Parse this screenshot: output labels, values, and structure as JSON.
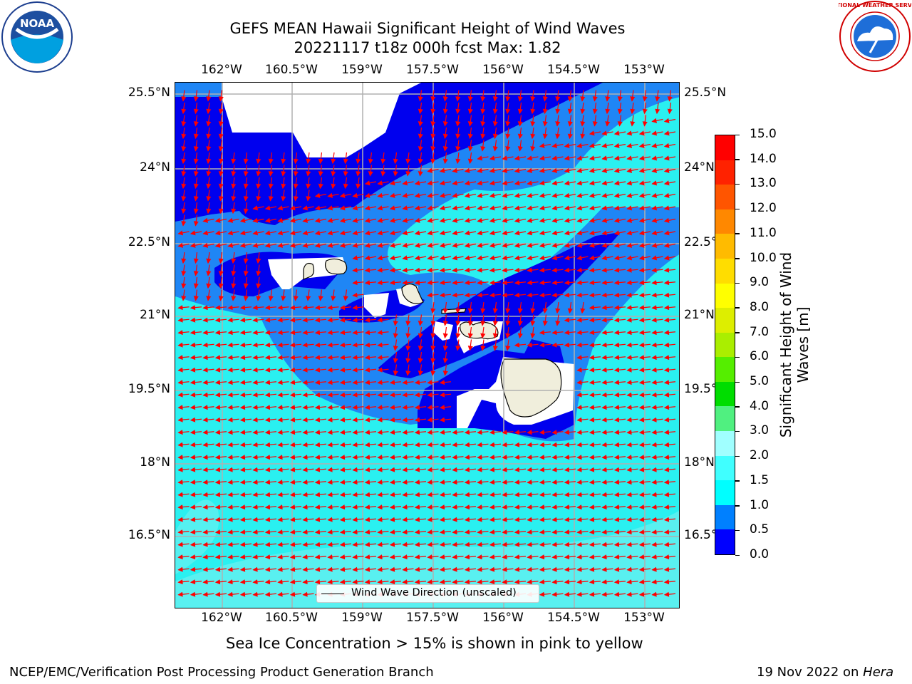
{
  "header": {
    "title_line1": "GEFS MEAN Hawaii Significant Height of Wind Waves",
    "title_line2": "20221117 t18z 000h fcst   Max: 1.82"
  },
  "logos": {
    "noara": "NOAA",
    "nws": "NATIONAL WEATHER SERVICE"
  },
  "map": {
    "lon_labels": [
      "162°W",
      "160.5°W",
      "159°W",
      "157.5°W",
      "156°W",
      "154.5°W",
      "153°W"
    ],
    "lat_labels": [
      "25.5°N",
      "24°N",
      "22.5°N",
      "21°N",
      "19.5°N",
      "18°N",
      "16.5°N"
    ],
    "lon_range": [
      -163,
      -152.8
    ],
    "lat_range": [
      15.1,
      25.7
    ],
    "legend_label": "Wind Wave Direction (unscaled)"
  },
  "colorbar": {
    "title": "Significant Height of Wind Waves [m]",
    "title_line1": "Significant Height of Wind",
    "title_line2": "Waves [m]",
    "ticks": [
      "15.0",
      "14.0",
      "13.0",
      "12.0",
      "11.0",
      "10.0",
      "9.0",
      "8.0",
      "7.0",
      "6.0",
      "5.0",
      "4.0",
      "3.0",
      "2.0",
      "1.5",
      "1.0",
      "0.5",
      "0.0"
    ],
    "colors": [
      "#0000ff",
      "#0080ff",
      "#00ffff",
      "#40ffff",
      "#a0ffff",
      "#50f080",
      "#00dd00",
      "#55ee00",
      "#aaee00",
      "#ddee00",
      "#ffff00",
      "#ffdd00",
      "#ffbb00",
      "#ff8800",
      "#ff5500",
      "#ff2200",
      "#ff0000"
    ]
  },
  "palette": {
    "cyan": "#2af0f0",
    "light_cyan": "#7ff0f0",
    "mid_blue": "#1f86f5",
    "deep_blue": "#0000ee",
    "land": "#f0eedc",
    "arrow": "#ff0000"
  },
  "footer": {
    "sea_ice_note": "Sea Ice Concentration > 15% is shown in pink to yellow",
    "branch": "NCEP/EMC/Verification Post Processing Product Generation Branch",
    "date": "19 Nov 2022 on",
    "machine": "Hera"
  }
}
